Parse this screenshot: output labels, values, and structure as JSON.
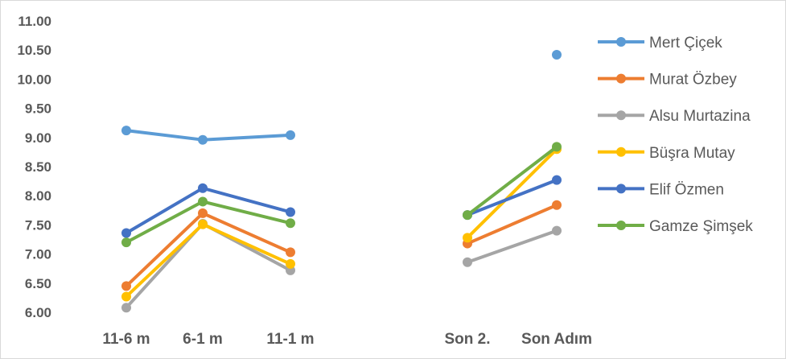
{
  "chart_data": {
    "type": "line",
    "categories": [
      "11-6 m",
      "6-1 m",
      "11-1 m",
      "",
      "Son 2.",
      "Son Adım"
    ],
    "ylim": [
      6.0,
      11.0
    ],
    "yticks": [
      "6.00",
      "6.50",
      "7.00",
      "7.50",
      "8.00",
      "8.50",
      "9.00",
      "9.50",
      "10.00",
      "10.50",
      "11.00"
    ],
    "grid": false,
    "legend_position": "right",
    "series": [
      {
        "name": "Mert Çiçek",
        "color": "#5b9bd5",
        "values": [
          9.12,
          8.96,
          9.04,
          null,
          null,
          10.42
        ]
      },
      {
        "name": "Murat Özbey",
        "color": "#ed7d31",
        "values": [
          6.45,
          7.7,
          7.03,
          null,
          7.18,
          7.84
        ]
      },
      {
        "name": "Alsu Murtazina",
        "color": "#a5a5a5",
        "values": [
          6.08,
          7.52,
          6.72,
          null,
          6.86,
          7.4
        ]
      },
      {
        "name": "Büşra Mutay",
        "color": "#ffc000",
        "values": [
          6.27,
          7.51,
          6.83,
          null,
          7.28,
          8.8
        ]
      },
      {
        "name": "Elif Özmen",
        "color": "#4472c4",
        "values": [
          7.36,
          8.13,
          7.72,
          null,
          7.67,
          8.27
        ]
      },
      {
        "name": "Gamze Şimşek",
        "color": "#70ad47",
        "values": [
          7.2,
          7.9,
          7.53,
          null,
          7.67,
          8.84
        ]
      }
    ]
  }
}
